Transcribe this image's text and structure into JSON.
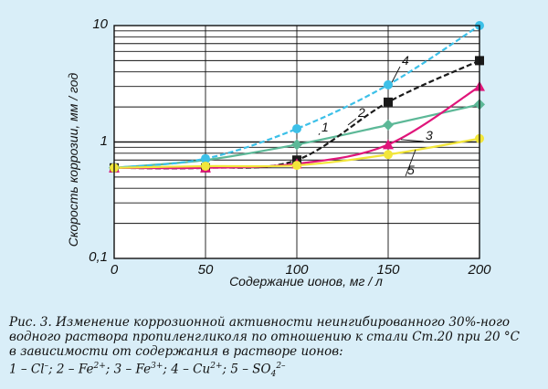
{
  "chart_data": {
    "type": "line",
    "yscale": "log",
    "ylabel": "Скорость коррозии, мм / год",
    "xlabel": "Содержание ионов, мг / л",
    "x_ticks": [
      "0",
      "50",
      "100",
      "150",
      "200"
    ],
    "y_ticks": [
      "0,1",
      "1",
      "10"
    ],
    "xlim": [
      0,
      200
    ],
    "ylim": [
      0.1,
      10
    ],
    "grid": true,
    "series": [
      {
        "name": "1",
        "color": "#5cb897",
        "marker": "diamond",
        "x": [
          0,
          50,
          100,
          150,
          200
        ],
        "y": [
          0.6,
          0.7,
          0.95,
          1.4,
          2.1
        ]
      },
      {
        "name": "2",
        "color": "#1a1a1a",
        "marker": "square",
        "x": [
          0,
          50,
          100,
          150,
          200
        ],
        "y": [
          0.6,
          0.6,
          0.7,
          2.2,
          5.0
        ]
      },
      {
        "name": "3",
        "color": "#e0157a",
        "marker": "triangle",
        "x": [
          0,
          50,
          100,
          150,
          200
        ],
        "y": [
          0.6,
          0.6,
          0.65,
          0.95,
          3.0
        ]
      },
      {
        "name": "4",
        "color": "#3cc0e8",
        "marker": "circle",
        "x": [
          0,
          50,
          100,
          150,
          200
        ],
        "y": [
          0.6,
          0.72,
          1.3,
          3.1,
          10.0
        ]
      },
      {
        "name": "5",
        "color": "#f2e63a",
        "marker": "circle",
        "x": [
          0,
          50,
          100,
          150,
          200
        ],
        "y": [
          0.6,
          0.62,
          0.63,
          0.78,
          1.07
        ]
      }
    ]
  },
  "caption": {
    "line1": "Рис. 3. Изменение коррозионной активности неингибированного 30%-ного",
    "line2": "водного раствора пропиленгликоля по отношению к стали Ст.20 при 20 °С",
    "line3": "в зависимости от содержания в растворе ионов:",
    "legend_prefix_1": "1 – Cl",
    "legend_sup_1": "–",
    "legend_prefix_2": "; 2 – Fe",
    "legend_sup_2": "2+",
    "legend_prefix_3": "; 3 – Fe",
    "legend_sup_3": "3+",
    "legend_prefix_4": "; 4 – Cu",
    "legend_sup_4": "2+",
    "legend_prefix_5": "; 5 – SO",
    "legend_sub_5": "4",
    "legend_sup_5": "2–"
  }
}
